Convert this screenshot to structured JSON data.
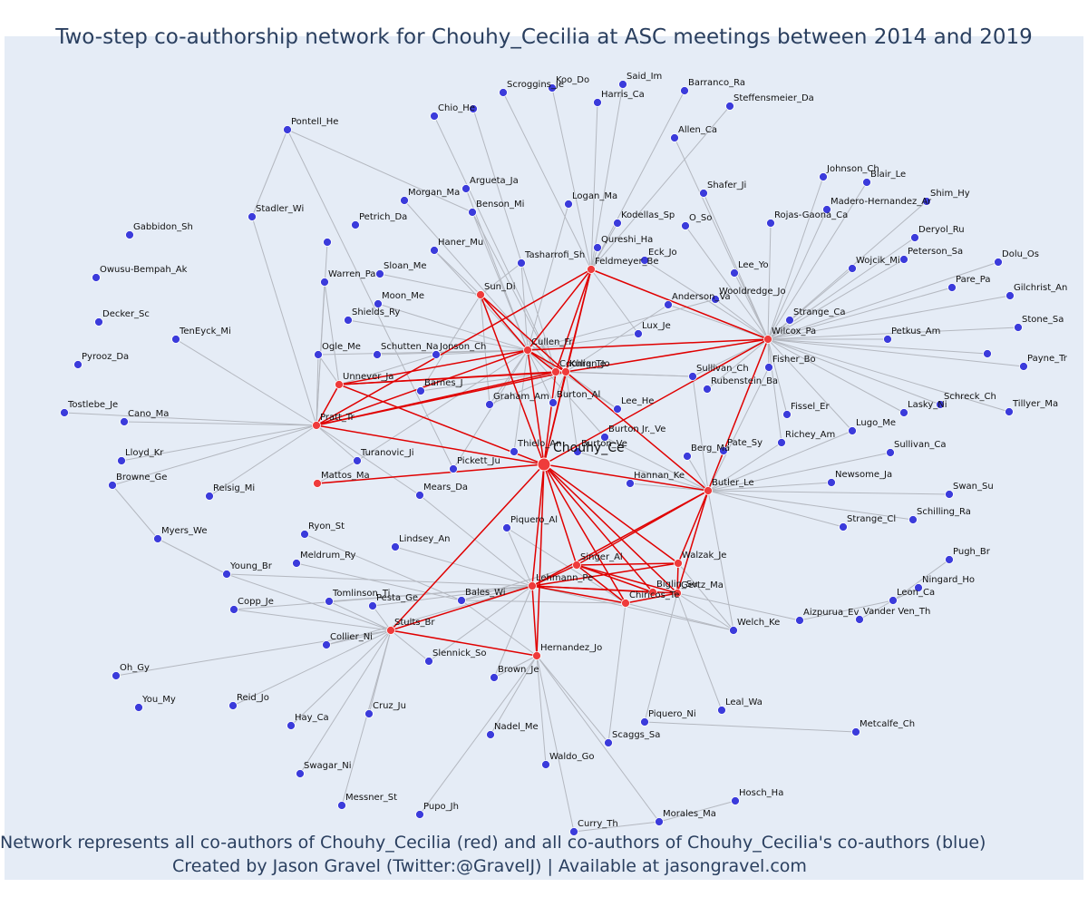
{
  "title": "Two-step co-authorship network for Chouhy_Cecilia at ASC meetings between 2014 and 2019",
  "footer": {
    "line1": "Network represents all co-authors of Chouhy_Cecilia (red) and all co-authors of Chouhy_Cecilia's co-authors (blue)",
    "line2": "Created by Jason Gravel (Twitter:@GravelJ) | Available at jasongravel.com"
  },
  "colors": {
    "background": "#e5ecf6",
    "coauthor_node": "#ef3b3b",
    "second_step_node": "#3b3bdb",
    "coauthor_edge": "#e00000",
    "second_step_edge": "#b4b8c0"
  },
  "center": "Chouhy_Ce",
  "coauthors": [
    "Sun_Di",
    "Feldmeyer_Be",
    "Cullen_Fr",
    "Kulig_Te",
    "Cochran_Jo",
    "Unnever_Ja",
    "Pratt_Tr",
    "Mattos_Ma",
    "Wilcox_Pa",
    "Butler_Le",
    "Singer_Al",
    "Walzak_Je",
    "Lehmann_Pe",
    "Gertz_Ma",
    "Biglin_Su",
    "Chiricos_Te",
    "Stults_Br",
    "Hernandez_Jo"
  ],
  "authors": [
    "Scroggins_Je",
    "Koo_Do",
    "Said_Im",
    "Barranco_Ra",
    "Harris_Ca",
    "Steffensmeier_Da",
    "Chio_He",
    "Pontell_He",
    "Allen_Ca",
    "Johnson_Ch",
    "Blair_Le",
    "Argueta_Ja",
    "Morgan_Ma",
    "Benson_Mi",
    "Logan_Ma",
    "Shafer_Ji",
    "Shim_Hy",
    "Madero-Hernandez_Ar",
    "Stadler_Wi",
    "Petrich_Da",
    "Kodellas_Sp",
    "O_So",
    "Rojas-Gaona_Ca",
    "Gabbidon_Sh",
    "Deryol_Ru",
    "Haner_Mu",
    "Qureshi_Ha",
    "Eck_Jo",
    "Peterson_Sa",
    "Dolu_Os",
    "Owusu-Bempah_Ak",
    "Tasharrofi_Sh",
    "Sloan_Me",
    "Wojcik_Mi",
    "Lee_Yo",
    "Pare_Pa",
    "Gilchrist_An",
    "Warren_Pa",
    "Moon_Me",
    "Wooldredge_Jo",
    "Anderson_Va",
    "Strange_Ca",
    "Stone_Sa",
    "Decker_Sc",
    "Shields_Ry",
    "Lux_Je",
    "Petkus_Am",
    "TenEyck_Mi",
    "Ogle_Me",
    "Schutten_Na",
    "Jonson_Ch",
    "Pyrooz_Da",
    "Fisher_Bo",
    "Payne_Tr",
    "Barnes_J",
    "Sullivan_Ch",
    "Rubenstein_Ba",
    "Graham_Am",
    "Burton_Al",
    "Lee_He",
    "Tostlebe_Je",
    "Fissel_Er",
    "Schreck_Ch",
    "Lasky_Ni",
    "Tillyer_Ma",
    "Cano_Ma",
    "Lugo_Me",
    "Burton_Jr_Ve",
    "Richey_Am",
    "Thielo_An",
    "Burton_Ve",
    "Lloyd_Kr",
    "Turanovic_Ji",
    "Pickett_Ju",
    "Berg_Ma",
    "Pate_Sy",
    "Sullivan_Ca",
    "Browne_Ge",
    "Hannan_Ke",
    "Newsome_Ja",
    "Reisig_Mi",
    "Mears_Da",
    "Swan_Su",
    "Strange_Cl",
    "Schilling_Ra",
    "Myers_We",
    "Piquero_Al",
    "Ryon_St",
    "Lindsey_An",
    "Pugh_Br",
    "Meldrum_Ry",
    "Young_Br",
    "Ningard_Ho",
    "Leon_Ca",
    "Tomlinson_Ti",
    "Bales_Wi",
    "Vander_Ven_Th",
    "Copp_Je",
    "Pesta_Ge",
    "Aizpurua_Ev",
    "Welch_Ke",
    "Collier_Ni",
    "Oh_Gy",
    "Slennick_So",
    "Brown_Je",
    "You_My",
    "Reid_Jo",
    "Leal_Wa",
    "Cruz_Ju",
    "Piquero_Ni",
    "Metcalfe_Ch",
    "Hay_Ca",
    "Nadel_Me",
    "Scaggs_Sa",
    "Waldo_Go",
    "Swagar_Ni",
    "Messner_St",
    "Hosch_Ha",
    "Pupo_Jh",
    "Morales_Ma",
    "Curry_Th"
  ],
  "labels": {
    "Chouhy_Ce": "Chouhy_Ce",
    "Sun_Di": "Sun_Di",
    "Feldmeyer_Be": "Feldmeyer_Be",
    "Cullen_Fr": "Cullen_Fr",
    "Kulig_Te": "Kulig_Te",
    "Cochran_Jo": "Cochran_Jo",
    "Unnever_Ja": "Unnever_Ja",
    "Pratt_Tr": "Pratt_Tr",
    "Mattos_Ma": "Mattos_Ma",
    "Wilcox_Pa": "Wilcox_Pa",
    "Butler_Le": "Butler_Le",
    "Singer_Al": "Singer_Al",
    "Walzak_Je": "Walzak_Je",
    "Lehmann_Pe": "Lehmann_Pe",
    "Gertz_Ma": "Gertz_Ma",
    "Biglin_Su": "Biglin_Su",
    "Chiricos_Te": "Chiricos_Te",
    "Stults_Br": "Stults_Br",
    "Hernandez_Jo": "Hernandez_Jo",
    "Scroggins_Je": "Scroggins_Je",
    "Koo_Do": "Koo_Do",
    "Said_Im": "Said_Im",
    "Barranco_Ra": "Barranco_Ra",
    "Harris_Ca": "Harris_Ca",
    "Steffensmeier_Da": "Steffensmeier_Da",
    "Chio_He": "Chio_He",
    "Pontell_He": "Pontell_He",
    "Allen_Ca": "Allen_Ca",
    "Johnson_Ch": "Johnson_Ch",
    "Blair_Le": "Blair_Le",
    "Argueta_Ja": "Argueta_Ja",
    "Morgan_Ma": "Morgan_Ma",
    "Benson_Mi": "Benson_Mi",
    "Logan_Ma": "Logan_Ma",
    "Shafer_Ji": "Shafer_Ji",
    "Shim_Hy": "Shim_Hy",
    "Madero-Hernandez_Ar": "Madero-Hernandez_Ar",
    "Stadler_Wi": "Stadler_Wi",
    "Petrich_Da": "Petrich_Da",
    "Kodellas_Sp": "Kodellas_Sp",
    "O_So": "O_So",
    "Rojas-Gaona_Ca": "Rojas-Gaona_Ca",
    "Gabbidon_Sh": "Gabbidon_Sh",
    "Deryol_Ru": "Deryol_Ru",
    "Haner_Mu": "Haner_Mu",
    "Qureshi_Ha": "Qureshi_Ha",
    "Eck_Jo": "Eck_Jo",
    "Peterson_Sa": "Peterson_Sa",
    "Dolu_Os": "Dolu_Os",
    "Owusu-Bempah_Ak": "Owusu-Bempah_Ak",
    "Tasharrofi_Sh": "Tasharrofi_Sh",
    "Sloan_Me": "Sloan_Me",
    "Wojcik_Mi": "Wojcik_Mi",
    "Lee_Yo": "Lee_Yo",
    "Pare_Pa": "Pare_Pa",
    "Gilchrist_An": "Gilchrist_An",
    "Warren_Pa": "Warren_Pa",
    "Moon_Me": "Moon_Me",
    "Wooldredge_Jo": "Wooldredge_Jo",
    "Anderson_Va": "Anderson_Va",
    "Strange_Ca": "Strange_Ca",
    "Stone_Sa": "Stone_Sa",
    "Decker_Sc": "Decker_Sc",
    "Shields_Ry": "Shields_Ry",
    "Lux_Je": "Lux_Je",
    "Petkus_Am": "Petkus_Am",
    "TenEyck_Mi": "TenEyck_Mi",
    "Ogle_Me": "Ogle_Me",
    "Schutten_Na": "Schutten_Na",
    "Jonson_Ch": "Jonson_Ch",
    "Pyrooz_Da": "Pyrooz_Da",
    "Fisher_Bo": "Fisher_Bo",
    "Payne_Tr": "Payne_Tr",
    "Barnes_J": "Barnes_J",
    "Sullivan_Ch": "Sullivan_Ch",
    "Rubenstein_Ba": "Rubenstein_Ba",
    "Graham_Am": "Graham_Am",
    "Burton_Al": "Burton_Al",
    "Lee_He": "Lee_He",
    "Tostlebe_Je": "Tostlebe_Je",
    "Fissel_Er": "Fissel_Er",
    "Schreck_Ch": "Schreck_Ch",
    "Lasky_Ni": "Lasky_Ni",
    "Tillyer_Ma": "Tillyer_Ma",
    "Cano_Ma": "Cano_Ma",
    "Lugo_Me": "Lugo_Me",
    "Burton_Jr_Ve": "Burton Jr._Ve",
    "Richey_Am": "Richey_Am",
    "Thielo_An": "Thielo_An",
    "Burton_Ve": "Burton_Ve",
    "Lloyd_Kr": "Lloyd_Kr",
    "Turanovic_Ji": "Turanovic_Ji",
    "Pickett_Ju": "Pickett_Ju",
    "Berg_Ma": "Berg_Ma",
    "Pate_Sy": "Pate_Sy",
    "Sullivan_Ca": "Sullivan_Ca",
    "Browne_Ge": "Browne_Ge",
    "Hannan_Ke": "Hannan_Ke",
    "Newsome_Ja": "Newsome_Ja",
    "Reisig_Mi": "Reisig_Mi",
    "Mears_Da": "Mears_Da",
    "Swan_Su": "Swan_Su",
    "Strange_Cl": "Strange_Cl",
    "Schilling_Ra": "Schilling_Ra",
    "Myers_We": "Myers_We",
    "Piquero_Al": "Piquero_Al",
    "Ryon_St": "Ryon_St",
    "Lindsey_An": "Lindsey_An",
    "Pugh_Br": "Pugh_Br",
    "Meldrum_Ry": "Meldrum_Ry",
    "Young_Br": "Young_Br",
    "Ningard_Ho": "Ningard_Ho",
    "Leon_Ca": "Leon_Ca",
    "Tomlinson_Ti": "Tomlinson_Ti",
    "Bales_Wi": "Bales_Wi",
    "Vander_Ven_Th": "Vander Ven_Th",
    "Copp_Je": "Copp_Je",
    "Pesta_Ge": "Pesta_Ge",
    "Aizpurua_Ev": "Aizpurua_Ev",
    "Welch_Ke": "Welch_Ke",
    "Collier_Ni": "Collier_Ni",
    "Oh_Gy": "Oh_Gy",
    "Slennick_So": "Slennick_So",
    "Brown_Je": "Brown_Je",
    "You_My": "You_My",
    "Reid_Jo": "Reid_Jo",
    "Leal_Wa": "Leal_Wa",
    "Cruz_Ju": "Cruz_Ju",
    "Piquero_Ni": "Piquero_Ni",
    "Metcalfe_Ch": "Metcalfe_Ch",
    "Hay_Ca": "Hay_Ca",
    "Nadel_Me": "Nadel_Me",
    "Scaggs_Sa": "Scaggs_Sa",
    "Waldo_Go": "Waldo_Go",
    "Swagar_Ni": "Swagar_Ni",
    "Messner_St": "Messner_St",
    "Hosch_Ha": "Hosch_Ha",
    "Pupo_Jh": "Pupo_Jh",
    "Morales_Ma": "Morales_Ma",
    "Curry_Th": "Curry_Th"
  },
  "red_edges": [
    [
      "Chouhy_Ce",
      "Sun_Di"
    ],
    [
      "Chouhy_Ce",
      "Feldmeyer_Be"
    ],
    [
      "Chouhy_Ce",
      "Cullen_Fr"
    ],
    [
      "Chouhy_Ce",
      "Kulig_Te"
    ],
    [
      "Chouhy_Ce",
      "Cochran_Jo"
    ],
    [
      "Chouhy_Ce",
      "Unnever_Ja"
    ],
    [
      "Chouhy_Ce",
      "Pratt_Tr"
    ],
    [
      "Chouhy_Ce",
      "Mattos_Ma"
    ],
    [
      "Chouhy_Ce",
      "Wilcox_Pa"
    ],
    [
      "Chouhy_Ce",
      "Butler_Le"
    ],
    [
      "Chouhy_Ce",
      "Singer_Al"
    ],
    [
      "Chouhy_Ce",
      "Walzak_Je"
    ],
    [
      "Chouhy_Ce",
      "Lehmann_Pe"
    ],
    [
      "Chouhy_Ce",
      "Gertz_Ma"
    ],
    [
      "Chouhy_Ce",
      "Biglin_Su"
    ],
    [
      "Chouhy_Ce",
      "Chiricos_Te"
    ],
    [
      "Chouhy_Ce",
      "Stults_Br"
    ],
    [
      "Chouhy_Ce",
      "Hernandez_Jo"
    ],
    [
      "Sun_Di",
      "Cullen_Fr"
    ],
    [
      "Sun_Di",
      "Kulig_Te"
    ],
    [
      "Feldmeyer_Be",
      "Cullen_Fr"
    ],
    [
      "Feldmeyer_Be",
      "Kulig_Te"
    ],
    [
      "Feldmeyer_Be",
      "Wilcox_Pa"
    ],
    [
      "Feldmeyer_Be",
      "Cochran_Jo"
    ],
    [
      "Cullen_Fr",
      "Kulig_Te"
    ],
    [
      "Cullen_Fr",
      "Pratt_Tr"
    ],
    [
      "Cullen_Fr",
      "Unnever_Ja"
    ],
    [
      "Cullen_Fr",
      "Wilcox_Pa"
    ],
    [
      "Cullen_Fr",
      "Cochran_Jo"
    ],
    [
      "Kulig_Te",
      "Wilcox_Pa"
    ],
    [
      "Kulig_Te",
      "Unnever_Ja"
    ],
    [
      "Kulig_Te",
      "Pratt_Tr"
    ],
    [
      "Kulig_Te",
      "Butler_Le"
    ],
    [
      "Cochran_Jo",
      "Pratt_Tr"
    ],
    [
      "Cochran_Jo",
      "Unnever_Ja"
    ],
    [
      "Unnever_Ja",
      "Pratt_Tr"
    ],
    [
      "Wilcox_Pa",
      "Butler_Le"
    ],
    [
      "Butler_Le",
      "Singer_Al"
    ],
    [
      "Butler_Le",
      "Walzak_Je"
    ],
    [
      "Butler_Le",
      "Gertz_Ma"
    ],
    [
      "Butler_Le",
      "Lehmann_Pe"
    ],
    [
      "Singer_Al",
      "Walzak_Je"
    ],
    [
      "Singer_Al",
      "Lehmann_Pe"
    ],
    [
      "Singer_Al",
      "Biglin_Su"
    ],
    [
      "Singer_Al",
      "Chiricos_Te"
    ],
    [
      "Singer_Al",
      "Gertz_Ma"
    ],
    [
      "Lehmann_Pe",
      "Gertz_Ma"
    ],
    [
      "Lehmann_Pe",
      "Walzak_Je"
    ],
    [
      "Lehmann_Pe",
      "Biglin_Su"
    ],
    [
      "Lehmann_Pe",
      "Chiricos_Te"
    ],
    [
      "Lehmann_Pe",
      "Stults_Br"
    ],
    [
      "Lehmann_Pe",
      "Hernandez_Jo"
    ],
    [
      "Gertz_Ma",
      "Walzak_Je"
    ],
    [
      "Gertz_Ma",
      "Chiricos_Te"
    ],
    [
      "Stults_Br",
      "Hernandez_Jo"
    ],
    [
      "Pratt_Tr",
      "Feldmeyer_Be"
    ]
  ],
  "gray_edges": [
    [
      "Sun_Di",
      "Tasharrofi_Sh"
    ],
    [
      "Sun_Di",
      "Barnes_J"
    ],
    [
      "Sun_Di",
      "Graham_Am"
    ],
    [
      "Sun_Di",
      "Sloan_Me"
    ],
    [
      "Sun_Di",
      "Haner_Mu"
    ],
    [
      "Feldmeyer_Be",
      "Harris_Ca"
    ],
    [
      "Feldmeyer_Be",
      "Steffensmeier_Da"
    ],
    [
      "Feldmeyer_Be",
      "Barranco_Ra"
    ],
    [
      "Feldmeyer_Be",
      "Scroggins_Je"
    ],
    [
      "Feldmeyer_Be",
      "Koo_Do"
    ],
    [
      "Feldmeyer_Be",
      "Said_Im"
    ],
    [
      "Feldmeyer_Be",
      "Kodellas_Sp"
    ],
    [
      "Feldmeyer_Be",
      "Qureshi_Ha"
    ],
    [
      "Feldmeyer_Be",
      "Lux_Je"
    ],
    [
      "Cullen_Fr",
      "Jonson_Ch"
    ],
    [
      "Cullen_Fr",
      "Burton_Al"
    ],
    [
      "Cullen_Fr",
      "Lee_He"
    ],
    [
      "Cullen_Fr",
      "Graham_Am"
    ],
    [
      "Cullen_Fr",
      "Thielo_An"
    ],
    [
      "Cullen_Fr",
      "Burton_Jr_Ve"
    ],
    [
      "Cullen_Fr",
      "Pickett_Ju"
    ],
    [
      "Cullen_Fr",
      "Haner_Mu"
    ],
    [
      "Cullen_Fr",
      "Tasharrofi_Sh"
    ],
    [
      "Cullen_Fr",
      "Logan_Ma"
    ],
    [
      "Cullen_Fr",
      "Lux_Je"
    ],
    [
      "Cullen_Fr",
      "Moon_Me"
    ],
    [
      "Cullen_Fr",
      "Benson_Mi"
    ],
    [
      "Cullen_Fr",
      "Wooldredge_Jo"
    ],
    [
      "Cullen_Fr",
      "Ogle_Me"
    ],
    [
      "Cullen_Fr",
      "Schutten_Na"
    ],
    [
      "Cullen_Fr",
      "Turanovic_Ji"
    ],
    [
      "Cullen_Fr",
      "Shields_Ry"
    ],
    [
      "Cullen_Fr",
      "Argueta_Ja"
    ],
    [
      "Kulig_Te",
      "Graham_Am"
    ],
    [
      "Kulig_Te",
      "Burton_Al"
    ],
    [
      "Kulig_Te",
      "Sullivan_Ch"
    ],
    [
      "Kulig_Te",
      "Anderson_Va"
    ],
    [
      "Kulig_Te",
      "Lee_He"
    ],
    [
      "Kulig_Te",
      "Burton_Ve"
    ],
    [
      "Cochran_Jo",
      "Chio_He"
    ],
    [
      "Cochran_Jo",
      "Chio_He2"
    ],
    [
      "Cochran_Jo",
      "Morgan_Ma"
    ],
    [
      "Cochran_Jo",
      "Benson_Mi"
    ],
    [
      "Cochran_Jo",
      "Barnes_J"
    ],
    [
      "Cochran_Jo",
      "Sullivan_Ch"
    ],
    [
      "Unnever_Ja",
      "Ogle_Me"
    ],
    [
      "Unnever_Ja",
      "Jonson_Ch"
    ],
    [
      "Unnever_Ja",
      "Warren_Pa"
    ],
    [
      "Pratt_Tr",
      "Turanovic_Ji"
    ],
    [
      "Pratt_Tr",
      "Reisig_Mi"
    ],
    [
      "Pratt_Tr",
      "Cano_Ma"
    ],
    [
      "Pratt_Tr",
      "Lloyd_Kr"
    ],
    [
      "Pratt_Tr",
      "Browne_Ge"
    ],
    [
      "Pratt_Tr",
      "Tostlebe_Je"
    ],
    [
      "Pratt_Tr",
      "TenEyck_Mi"
    ],
    [
      "Pratt_Tr",
      "Ogle_Me"
    ],
    [
      "Pratt_Tr",
      "Mears_Da"
    ],
    [
      "Pratt_Tr",
      "Stadler_Wi"
    ],
    [
      "Pratt_Tr",
      "Warren_Pa"
    ],
    [
      "Pratt_Tr",
      "Logan_Ma2"
    ],
    [
      "Wilcox_Pa",
      "Rojas-Gaona_Ca"
    ],
    [
      "Wilcox_Pa",
      "Strange_Ca"
    ],
    [
      "Wilcox_Pa",
      "Fisher_Bo"
    ],
    [
      "Wilcox_Pa",
      "Sullivan_Ch"
    ],
    [
      "Wilcox_Pa",
      "Wojcik_Mi"
    ],
    [
      "Wilcox_Pa",
      "Lee_Yo"
    ],
    [
      "Wilcox_Pa",
      "Wooldredge_Jo"
    ],
    [
      "Wilcox_Pa",
      "Anderson_Va"
    ],
    [
      "Wilcox_Pa",
      "Petkus_Am"
    ],
    [
      "Wilcox_Pa",
      "Madero-Hernandez_Ar"
    ],
    [
      "Wilcox_Pa",
      "Johnson_Ch"
    ],
    [
      "Wilcox_Pa",
      "Blair_Le"
    ],
    [
      "Wilcox_Pa",
      "Shim_Hy"
    ],
    [
      "Wilcox_Pa",
      "Deryol_Ru"
    ],
    [
      "Wilcox_Pa",
      "Peterson_Sa"
    ],
    [
      "Wilcox_Pa",
      "Pare_Pa"
    ],
    [
      "Wilcox_Pa",
      "Gilchrist_An"
    ],
    [
      "Wilcox_Pa",
      "Stone_Sa"
    ],
    [
      "Wilcox_Pa",
      "Peterson_Sa2"
    ],
    [
      "Wilcox_Pa",
      "Payne_Tr"
    ],
    [
      "Wilcox_Pa",
      "Lasky_Ni"
    ],
    [
      "Wilcox_Pa",
      "Schreck_Ch"
    ],
    [
      "Wilcox_Pa",
      "Tillyer_Ma"
    ],
    [
      "Wilcox_Pa",
      "Lugo_Me"
    ],
    [
      "Wilcox_Pa",
      "Fissel_Er"
    ],
    [
      "Wilcox_Pa",
      "Richey_Am"
    ],
    [
      "Wilcox_Pa",
      "Rubenstein_Ba"
    ],
    [
      "Wilcox_Pa",
      "Eck_Jo"
    ],
    [
      "Wilcox_Pa",
      "O_So"
    ],
    [
      "Wilcox_Pa",
      "Shafer_Ji"
    ],
    [
      "Wilcox_Pa",
      "Allen_Ca"
    ],
    [
      "Wilcox_Pa",
      "Dolu_Os"
    ],
    [
      "Butler_Le",
      "Sullivan_Ca"
    ],
    [
      "Butler_Le",
      "Newsome_Ja"
    ],
    [
      "Butler_Le",
      "Strange_Cl"
    ],
    [
      "Butler_Le",
      "Lugo_Me"
    ],
    [
      "Butler_Le",
      "Pate_Sy"
    ],
    [
      "Butler_Le",
      "Berg_Ma"
    ],
    [
      "Butler_Le",
      "Hannan_Ke"
    ],
    [
      "Butler_Le",
      "Fisher_Bo"
    ],
    [
      "Butler_Le",
      "Sullivan_Ch"
    ],
    [
      "Butler_Le",
      "Swan_Su"
    ],
    [
      "Butler_Le",
      "Welch_Ke"
    ],
    [
      "Butler_Le",
      "Richey_Am"
    ],
    [
      "Butler_Le",
      "Burton_Jr_Ve"
    ],
    [
      "Butler_Le",
      "Burton_Ve"
    ],
    [
      "Butler_Le",
      "Schilling_Ra"
    ],
    [
      "Lehmann_Pe",
      "Bales_Wi"
    ],
    [
      "Lehmann_Pe",
      "Piquero_Al"
    ],
    [
      "Lehmann_Pe",
      "Mears_Da"
    ],
    [
      "Lehmann_Pe",
      "Pesta_Ge"
    ],
    [
      "Lehmann_Pe",
      "Lindsey_An"
    ],
    [
      "Lehmann_Pe",
      "Tomlinson_Ti"
    ],
    [
      "Lehmann_Pe",
      "Brown_Je"
    ],
    [
      "Lehmann_Pe",
      "Slennick_So"
    ],
    [
      "Lehmann_Pe",
      "Young_Br"
    ],
    [
      "Lehmann_Pe",
      "Copp_Je"
    ],
    [
      "Lehmann_Pe",
      "Collier_Ni"
    ],
    [
      "Lehmann_Pe",
      "Welch_Ke"
    ],
    [
      "Gertz_Ma",
      "Aizpurua_Ev"
    ],
    [
      "Gertz_Ma",
      "Welch_Ke"
    ],
    [
      "Gertz_Ma",
      "Piquero_Ni"
    ],
    [
      "Gertz_Ma",
      "Leal_Wa"
    ],
    [
      "Chiricos_Te",
      "Welch_Ke"
    ],
    [
      "Chiricos_Te",
      "Bales_Wi"
    ],
    [
      "Chiricos_Te",
      "Piquero_Al"
    ],
    [
      "Chiricos_Te",
      "Scaggs_Sa"
    ],
    [
      "Stults_Br",
      "Pesta_Ge"
    ],
    [
      "Stults_Br",
      "Collier_Ni"
    ],
    [
      "Stults_Br",
      "Hay_Ca"
    ],
    [
      "Stults_Br",
      "Swagar_Ni"
    ],
    [
      "Stults_Br",
      "Cruz_Ju"
    ],
    [
      "Stults_Br",
      "Slennick_So"
    ],
    [
      "Stults_Br",
      "Messner_St"
    ],
    [
      "Stults_Br",
      "Reid_Jo"
    ],
    [
      "Stults_Br",
      "Tomlinson_Ti"
    ],
    [
      "Stults_Br",
      "Copp_Je"
    ],
    [
      "Stults_Br",
      "Oh_Gy"
    ],
    [
      "Stults_Br",
      "Young_Br"
    ],
    [
      "Hernandez_Jo",
      "Brown_Je"
    ],
    [
      "Hernandez_Jo",
      "Nadel_Me"
    ],
    [
      "Hernandez_Jo",
      "Waldo_Go"
    ],
    [
      "Hernandez_Jo",
      "Curry_Th"
    ],
    [
      "Hernandez_Jo",
      "Morales_Ma"
    ],
    [
      "Hernandez_Jo",
      "Scaggs_Sa"
    ],
    [
      "Hernandez_Jo",
      "Pupo_Jh"
    ],
    [
      "Hernandez_Jo",
      "Bales_Wi"
    ],
    [
      "Mattos_Ma",
      "Turanovic_Ji"
    ],
    [
      "Walzak_Je",
      "Welch_Ke"
    ],
    [
      "Singer_Al",
      "Bales_Wi"
    ],
    [
      "Ryon_St",
      "Bales_Wi"
    ],
    [
      "Meldrum_Ry",
      "Bales_Wi"
    ],
    [
      "Young_Br",
      "Myers_We"
    ],
    [
      "Myers_We",
      "Browne_Ge"
    ],
    [
      "Pontell_He",
      "Stadler_Wi"
    ],
    [
      "Pontell_He",
      "Benson_Mi"
    ],
    [
      "Pontell_He",
      "Pickett_Ju"
    ],
    [
      "Curry_Th",
      "Morales_Ma"
    ],
    [
      "Morales_Ma",
      "Hosch_Ha"
    ],
    [
      "Ningard_Ho",
      "Leon_Ca"
    ],
    [
      "Vander_Ven_Th",
      "Leon_Ca"
    ],
    [
      "Pugh_Br",
      "Leon_Ca"
    ],
    [
      "Aizpurua_Ev",
      "Leon_Ca"
    ],
    [
      "Metcalfe_Ch",
      "Piquero_Ni"
    ]
  ]
}
